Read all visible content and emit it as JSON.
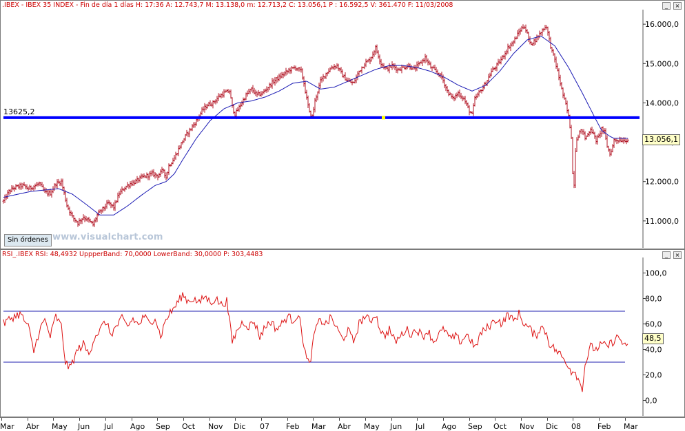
{
  "price_panel": {
    "header": ".IBEX - IBEX 35 INDEX - Fin de día 1 días H: 17:36  A: 12.743,7  M: 13.138,0  m: 12.713,2  C: 13.056,1  P : 16.592,5  V: 361.470  F: 11/03/2008",
    "level_label": "13625,2",
    "last_value": "13.056,1",
    "sin_ordenes": "Sin órdenes",
    "watermark": "www.visualchart.com",
    "colors": {
      "bars": "#b01020",
      "average": "#1a1ab4",
      "level": "#0000ff",
      "marker": "#ffff00"
    }
  },
  "rsi_panel": {
    "header": "RSI_.IBEX  RSI: 48,4932  UppperBand: 70,0000  LowerBand: 30,0000  P: 303,4483",
    "last_value": "48,5",
    "colors": {
      "rsi": "#dd1111",
      "bands": "#2020b0"
    }
  },
  "chart_data": [
    {
      "type": "ohlc",
      "series_colors": {
        "price": "#b01020",
        "moving_average": "#1a1ab4"
      },
      "ylim": [
        10350,
        16300
      ],
      "y_ticks": [
        11000,
        12000,
        13000,
        14000,
        15000,
        16000
      ],
      "y_tick_labels": [
        "11.000,0",
        "12.000,0",
        "13.000,0",
        "14.000,0",
        "15.000,0",
        "16.000,0"
      ],
      "horizontal_level": 13625.2,
      "x_month_labels": [
        "Mar",
        "Abr",
        "May",
        "Jun",
        "Jul",
        "Ago",
        "Sep",
        "Oct",
        "Nov",
        "Dic",
        "07",
        "Feb",
        "Mar",
        "Abr",
        "May",
        "Jun",
        "Jul",
        "Ago",
        "Sep",
        "Oct",
        "Nov",
        "Dic",
        "08",
        "Feb",
        "Mar"
      ],
      "price_curve": [
        [
          0,
          11500
        ],
        [
          4,
          11750
        ],
        [
          8,
          11850
        ],
        [
          14,
          11900
        ],
        [
          18,
          11820
        ],
        [
          22,
          11880
        ],
        [
          26,
          11950
        ],
        [
          30,
          11720
        ],
        [
          34,
          11700
        ],
        [
          38,
          11950
        ],
        [
          42,
          12000
        ],
        [
          46,
          11400
        ],
        [
          50,
          11100
        ],
        [
          54,
          10950
        ],
        [
          58,
          11100
        ],
        [
          62,
          11000
        ],
        [
          65,
          10900
        ],
        [
          68,
          11150
        ],
        [
          72,
          11300
        ],
        [
          76,
          11450
        ],
        [
          80,
          11350
        ],
        [
          84,
          11700
        ],
        [
          88,
          11850
        ],
        [
          92,
          11950
        ],
        [
          96,
          12000
        ],
        [
          100,
          12100
        ],
        [
          104,
          12150
        ],
        [
          108,
          12200
        ],
        [
          112,
          12150
        ],
        [
          116,
          12300
        ],
        [
          118,
          12100
        ],
        [
          120,
          12400
        ],
        [
          124,
          12600
        ],
        [
          128,
          12900
        ],
        [
          132,
          13150
        ],
        [
          136,
          13350
        ],
        [
          140,
          13550
        ],
        [
          144,
          13800
        ],
        [
          148,
          13950
        ],
        [
          152,
          14000
        ],
        [
          156,
          14150
        ],
        [
          160,
          14250
        ],
        [
          164,
          14300
        ],
        [
          166,
          13900
        ],
        [
          168,
          13700
        ],
        [
          172,
          13950
        ],
        [
          176,
          14200
        ],
        [
          180,
          14350
        ],
        [
          184,
          14200
        ],
        [
          188,
          14250
        ],
        [
          192,
          14400
        ],
        [
          196,
          14550
        ],
        [
          200,
          14650
        ],
        [
          204,
          14750
        ],
        [
          208,
          14850
        ],
        [
          212,
          14900
        ],
        [
          216,
          14800
        ],
        [
          218,
          14500
        ],
        [
          220,
          14100
        ],
        [
          222,
          13750
        ],
        [
          224,
          13650
        ],
        [
          226,
          14050
        ],
        [
          230,
          14550
        ],
        [
          234,
          14750
        ],
        [
          238,
          14900
        ],
        [
          242,
          14950
        ],
        [
          246,
          14700
        ],
        [
          250,
          14550
        ],
        [
          254,
          14500
        ],
        [
          258,
          14800
        ],
        [
          262,
          15000
        ],
        [
          266,
          15100
        ],
        [
          268,
          15250
        ],
        [
          270,
          15400
        ],
        [
          272,
          15200
        ],
        [
          274,
          15000
        ],
        [
          278,
          14850
        ],
        [
          282,
          14950
        ],
        [
          286,
          14850
        ],
        [
          290,
          14900
        ],
        [
          294,
          14950
        ],
        [
          298,
          14850
        ],
        [
          302,
          15000
        ],
        [
          306,
          15150
        ],
        [
          310,
          14900
        ],
        [
          314,
          14800
        ],
        [
          318,
          14650
        ],
        [
          322,
          14300
        ],
        [
          326,
          14100
        ],
        [
          330,
          14250
        ],
        [
          334,
          14100
        ],
        [
          338,
          13800
        ],
        [
          340,
          13700
        ],
        [
          342,
          14100
        ],
        [
          346,
          14300
        ],
        [
          350,
          14500
        ],
        [
          354,
          14800
        ],
        [
          358,
          14950
        ],
        [
          362,
          15150
        ],
        [
          366,
          15400
        ],
        [
          370,
          15550
        ],
        [
          374,
          15800
        ],
        [
          376,
          15900
        ],
        [
          378,
          15950
        ],
        [
          380,
          15750
        ],
        [
          382,
          15500
        ],
        [
          386,
          15600
        ],
        [
          390,
          15800
        ],
        [
          392,
          15900
        ],
        [
          394,
          15950
        ],
        [
          396,
          15600
        ],
        [
          398,
          15300
        ],
        [
          400,
          15100
        ],
        [
          402,
          14800
        ],
        [
          404,
          14500
        ],
        [
          406,
          14200
        ],
        [
          408,
          13950
        ],
        [
          410,
          13650
        ],
        [
          412,
          13150
        ],
        [
          413,
          12200
        ],
        [
          414,
          11950
        ],
        [
          415,
          12800
        ],
        [
          416,
          13100
        ],
        [
          418,
          13250
        ],
        [
          420,
          13300
        ],
        [
          422,
          13100
        ],
        [
          424,
          13200
        ],
        [
          426,
          13350
        ],
        [
          428,
          13200
        ],
        [
          430,
          13050
        ],
        [
          432,
          13150
        ],
        [
          434,
          13350
        ],
        [
          436,
          13250
        ],
        [
          438,
          12900
        ],
        [
          440,
          12700
        ],
        [
          442,
          12900
        ],
        [
          443,
          13056
        ]
      ],
      "moving_average": [
        [
          0,
          11600
        ],
        [
          20,
          11750
        ],
        [
          40,
          11820
        ],
        [
          50,
          11680
        ],
        [
          60,
          11420
        ],
        [
          70,
          11150
        ],
        [
          80,
          11150
        ],
        [
          90,
          11380
        ],
        [
          100,
          11650
        ],
        [
          110,
          11900
        ],
        [
          118,
          12000
        ],
        [
          124,
          12200
        ],
        [
          130,
          12550
        ],
        [
          140,
          13100
        ],
        [
          150,
          13550
        ],
        [
          160,
          13850
        ],
        [
          170,
          14000
        ],
        [
          180,
          14050
        ],
        [
          190,
          14150
        ],
        [
          200,
          14300
        ],
        [
          210,
          14500
        ],
        [
          220,
          14550
        ],
        [
          230,
          14350
        ],
        [
          240,
          14400
        ],
        [
          250,
          14550
        ],
        [
          260,
          14700
        ],
        [
          270,
          14850
        ],
        [
          280,
          14950
        ],
        [
          290,
          14950
        ],
        [
          300,
          14900
        ],
        [
          310,
          14800
        ],
        [
          320,
          14650
        ],
        [
          330,
          14450
        ],
        [
          340,
          14300
        ],
        [
          350,
          14450
        ],
        [
          360,
          14800
        ],
        [
          370,
          15250
        ],
        [
          380,
          15600
        ],
        [
          390,
          15700
        ],
        [
          400,
          15450
        ],
        [
          410,
          14900
        ],
        [
          420,
          14250
        ],
        [
          428,
          13700
        ],
        [
          434,
          13300
        ],
        [
          440,
          13150
        ],
        [
          443,
          13100
        ]
      ]
    },
    {
      "type": "line",
      "series_colors": {
        "rsi": "#dd1111",
        "bands": "#2020b0"
      },
      "ylim": [
        -10,
        110
      ],
      "y_ticks": [
        0,
        20,
        40,
        60,
        80,
        100
      ],
      "y_tick_labels": [
        "0,0",
        "20,0",
        "40,0",
        "60,0",
        "80,0",
        "100,0"
      ],
      "bands": [
        30,
        70
      ],
      "rsi_curve": [
        [
          0,
          60
        ],
        [
          6,
          65
        ],
        [
          12,
          68
        ],
        [
          18,
          58
        ],
        [
          22,
          38
        ],
        [
          26,
          55
        ],
        [
          30,
          63
        ],
        [
          34,
          50
        ],
        [
          38,
          66
        ],
        [
          42,
          58
        ],
        [
          45,
          30
        ],
        [
          48,
          25
        ],
        [
          50,
          30
        ],
        [
          54,
          40
        ],
        [
          58,
          44
        ],
        [
          62,
          36
        ],
        [
          66,
          50
        ],
        [
          70,
          55
        ],
        [
          74,
          62
        ],
        [
          78,
          52
        ],
        [
          82,
          58
        ],
        [
          86,
          64
        ],
        [
          90,
          58
        ],
        [
          94,
          64
        ],
        [
          98,
          59
        ],
        [
          102,
          66
        ],
        [
          106,
          60
        ],
        [
          110,
          66
        ],
        [
          114,
          50
        ],
        [
          118,
          64
        ],
        [
          122,
          70
        ],
        [
          126,
          76
        ],
        [
          130,
          83
        ],
        [
          134,
          78
        ],
        [
          138,
          80
        ],
        [
          142,
          76
        ],
        [
          146,
          82
        ],
        [
          150,
          77
        ],
        [
          154,
          80
        ],
        [
          158,
          75
        ],
        [
          162,
          78
        ],
        [
          166,
          46
        ],
        [
          170,
          56
        ],
        [
          174,
          62
        ],
        [
          178,
          58
        ],
        [
          182,
          62
        ],
        [
          186,
          50
        ],
        [
          190,
          58
        ],
        [
          194,
          62
        ],
        [
          198,
          56
        ],
        [
          202,
          60
        ],
        [
          206,
          66
        ],
        [
          210,
          63
        ],
        [
          214,
          68
        ],
        [
          216,
          56
        ],
        [
          220,
          32
        ],
        [
          222,
          28
        ],
        [
          224,
          40
        ],
        [
          226,
          55
        ],
        [
          230,
          63
        ],
        [
          234,
          60
        ],
        [
          238,
          65
        ],
        [
          242,
          56
        ],
        [
          246,
          48
        ],
        [
          250,
          55
        ],
        [
          254,
          46
        ],
        [
          258,
          60
        ],
        [
          262,
          66
        ],
        [
          266,
          62
        ],
        [
          270,
          68
        ],
        [
          272,
          60
        ],
        [
          276,
          50
        ],
        [
          280,
          56
        ],
        [
          284,
          46
        ],
        [
          288,
          50
        ],
        [
          292,
          56
        ],
        [
          296,
          52
        ],
        [
          300,
          56
        ],
        [
          304,
          50
        ],
        [
          308,
          55
        ],
        [
          312,
          46
        ],
        [
          316,
          52
        ],
        [
          320,
          56
        ],
        [
          324,
          48
        ],
        [
          328,
          50
        ],
        [
          332,
          46
        ],
        [
          336,
          52
        ],
        [
          340,
          46
        ],
        [
          342,
          40
        ],
        [
          346,
          52
        ],
        [
          350,
          56
        ],
        [
          354,
          60
        ],
        [
          358,
          64
        ],
        [
          362,
          60
        ],
        [
          366,
          68
        ],
        [
          370,
          62
        ],
        [
          374,
          68
        ],
        [
          378,
          60
        ],
        [
          382,
          56
        ],
        [
          386,
          50
        ],
        [
          390,
          58
        ],
        [
          394,
          53
        ],
        [
          396,
          45
        ],
        [
          400,
          40
        ],
        [
          404,
          36
        ],
        [
          408,
          30
        ],
        [
          410,
          28
        ],
        [
          412,
          22
        ],
        [
          414,
          25
        ],
        [
          418,
          14
        ],
        [
          420,
          10
        ],
        [
          422,
          28
        ],
        [
          424,
          35
        ],
        [
          426,
          42
        ],
        [
          430,
          40
        ],
        [
          434,
          44
        ],
        [
          438,
          42
        ],
        [
          442,
          46
        ],
        [
          446,
          50
        ],
        [
          450,
          44
        ],
        [
          452,
          40
        ],
        [
          454,
          48.5
        ]
      ]
    }
  ]
}
